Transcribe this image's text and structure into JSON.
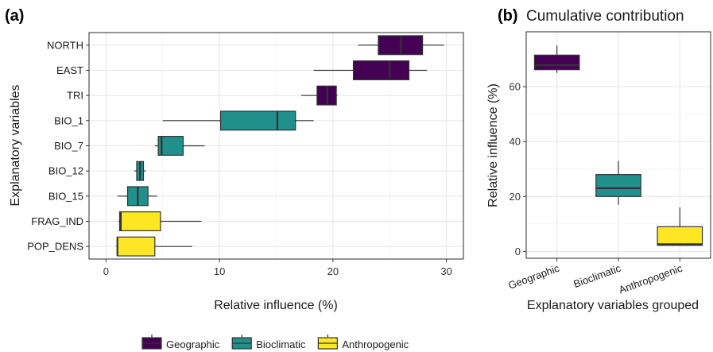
{
  "colors": {
    "Geographic": "#440154",
    "Bioclimatic": "#21908C",
    "Anthropogenic": "#FDE725",
    "grid": "#e5e5e5",
    "frame": "#2b2b2b"
  },
  "legend": {
    "position": "bottom",
    "items": [
      "Geographic",
      "Bioclimatic",
      "Anthropogenic"
    ]
  },
  "chart_data": [
    {
      "panel_label": "(a)",
      "type": "boxplot",
      "orientation": "horizontal",
      "title": "",
      "xlabel": "Relative influence (%)",
      "ylabel": "Explanatory variables",
      "xlim": [
        -1.5,
        31.5
      ],
      "xticks": [
        0,
        10,
        20,
        30
      ],
      "xtick_labels": [
        "0",
        "10",
        "20",
        "30"
      ],
      "grid": true,
      "boxes": [
        {
          "label": "NORTH",
          "group": "Geographic",
          "min": 22.2,
          "q1": 24.0,
          "median": 26.0,
          "q3": 27.9,
          "max": 29.8
        },
        {
          "label": "EAST",
          "group": "Geographic",
          "min": 18.3,
          "q1": 21.8,
          "median": 25.0,
          "q3": 26.7,
          "max": 28.3
        },
        {
          "label": "TRI",
          "group": "Geographic",
          "min": 17.2,
          "q1": 18.6,
          "median": 19.5,
          "q3": 20.3,
          "max": 20.4
        },
        {
          "label": "BIO_1",
          "group": "Bioclimatic",
          "min": 5.0,
          "q1": 10.1,
          "median": 15.1,
          "q3": 16.7,
          "max": 18.3
        },
        {
          "label": "BIO_7",
          "group": "Bioclimatic",
          "min": 4.3,
          "q1": 4.6,
          "median": 4.9,
          "q3": 6.8,
          "max": 8.7
        },
        {
          "label": "BIO_12",
          "group": "Bioclimatic",
          "min": 2.5,
          "q1": 2.7,
          "median": 3.0,
          "q3": 3.3,
          "max": 3.5
        },
        {
          "label": "BIO_15",
          "group": "Bioclimatic",
          "min": 1.0,
          "q1": 1.9,
          "median": 2.8,
          "q3": 3.7,
          "max": 4.5
        },
        {
          "label": "FRAG_IND",
          "group": "Anthropogenic",
          "min": 1.1,
          "q1": 1.2,
          "median": 1.3,
          "q3": 4.8,
          "max": 8.4
        },
        {
          "label": "POP_DENS",
          "group": "Anthropogenic",
          "min": 0.9,
          "q1": 1.0,
          "median": 1.0,
          "q3": 4.3,
          "max": 7.6
        }
      ]
    },
    {
      "panel_label": "(b)",
      "type": "boxplot",
      "orientation": "vertical",
      "title": "Cumulative contribution",
      "xlabel": "Explanatory variables grouped",
      "ylabel": "Relative influence (%)",
      "ylim": [
        -2.5,
        80
      ],
      "yticks": [
        0,
        20,
        40,
        60
      ],
      "ytick_labels": [
        "0",
        "20",
        "40",
        "60"
      ],
      "grid": true,
      "boxes": [
        {
          "label": "Geographic",
          "group": "Geographic",
          "min": 65.0,
          "q1": 66.2,
          "median": 67.8,
          "q3": 71.5,
          "max": 75.0
        },
        {
          "label": "Bioclimatic",
          "group": "Bioclimatic",
          "min": 17.0,
          "q1": 20.0,
          "median": 23.0,
          "q3": 28.0,
          "max": 33.0
        },
        {
          "label": "Anthropogenic",
          "group": "Anthropogenic",
          "min": 2.0,
          "q1": 2.2,
          "median": 2.6,
          "q3": 9.0,
          "max": 16.0
        }
      ]
    }
  ]
}
